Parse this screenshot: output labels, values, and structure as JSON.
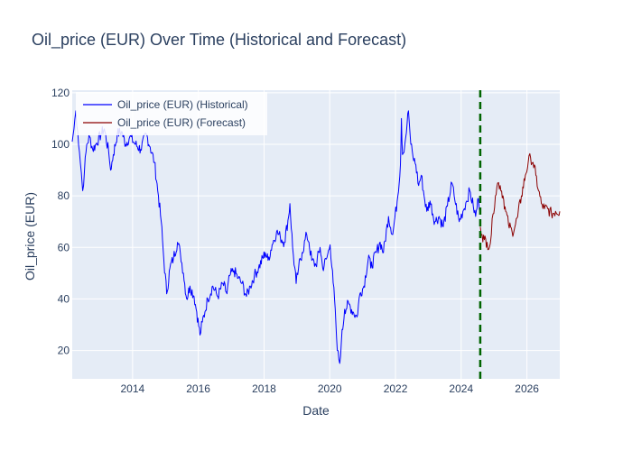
{
  "chart_data": {
    "type": "line",
    "title": "Oil_price (EUR) Over Time (Historical and Forecast)",
    "xlabel": "Date",
    "ylabel": "Oil_price (EUR)",
    "x_range": [
      "2012-03-01",
      "2027-01-01"
    ],
    "ylim": [
      9,
      121
    ],
    "x_ticks": [
      "2014",
      "2016",
      "2018",
      "2020",
      "2022",
      "2024",
      "2026"
    ],
    "y_ticks": [
      20,
      40,
      60,
      80,
      100,
      120
    ],
    "grid": true,
    "legend_position": "top-left",
    "forecast_start": "2024-07-31",
    "forecast_line_color": "#006400",
    "plot_background": "#e5ecf6",
    "series": [
      {
        "name": "Oil_price (EUR) (Historical)",
        "color": "#0000ff",
        "points": [
          [
            "2012-03-01",
            101
          ],
          [
            "2012-03-20",
            106
          ],
          [
            "2012-04-10",
            113
          ],
          [
            "2012-05-01",
            105
          ],
          [
            "2012-05-20",
            97
          ],
          [
            "2012-06-10",
            89
          ],
          [
            "2012-06-25",
            82
          ],
          [
            "2012-07-15",
            90
          ],
          [
            "2012-08-10",
            100
          ],
          [
            "2012-09-10",
            103
          ],
          [
            "2012-10-15",
            98
          ],
          [
            "2012-11-20",
            100
          ],
          [
            "2013-01-15",
            104
          ],
          [
            "2013-02-20",
            106
          ],
          [
            "2013-04-10",
            97
          ],
          [
            "2013-05-01",
            90
          ],
          [
            "2013-06-01",
            96
          ],
          [
            "2013-07-15",
            104
          ],
          [
            "2013-09-01",
            105
          ],
          [
            "2013-10-15",
            100
          ],
          [
            "2013-12-01",
            103
          ],
          [
            "2014-02-01",
            100
          ],
          [
            "2014-04-01",
            98
          ],
          [
            "2014-06-01",
            104
          ],
          [
            "2014-07-15",
            99
          ],
          [
            "2014-09-01",
            93
          ],
          [
            "2014-10-15",
            80
          ],
          [
            "2014-11-15",
            70
          ],
          [
            "2014-12-15",
            55
          ],
          [
            "2015-01-15",
            42
          ],
          [
            "2015-02-20",
            52
          ],
          [
            "2015-04-01",
            56
          ],
          [
            "2015-05-15",
            62
          ],
          [
            "2015-06-15",
            58
          ],
          [
            "2015-07-20",
            50
          ],
          [
            "2015-08-25",
            40
          ],
          [
            "2015-10-01",
            45
          ],
          [
            "2015-11-15",
            41
          ],
          [
            "2015-12-15",
            35
          ],
          [
            "2016-01-20",
            26
          ],
          [
            "2016-02-15",
            31
          ],
          [
            "2016-03-15",
            35
          ],
          [
            "2016-04-15",
            40
          ],
          [
            "2016-06-10",
            45
          ],
          [
            "2016-08-05",
            41
          ],
          [
            "2016-10-01",
            46
          ],
          [
            "2016-11-15",
            42
          ],
          [
            "2016-12-15",
            49
          ],
          [
            "2017-02-01",
            51
          ],
          [
            "2017-03-20",
            48
          ],
          [
            "2017-05-01",
            46
          ],
          [
            "2017-06-20",
            41
          ],
          [
            "2017-08-01",
            45
          ],
          [
            "2017-09-15",
            49
          ],
          [
            "2017-11-01",
            52
          ],
          [
            "2018-01-15",
            58
          ],
          [
            "2018-02-15",
            55
          ],
          [
            "2018-04-01",
            61
          ],
          [
            "2018-05-20",
            66
          ],
          [
            "2018-07-01",
            64
          ],
          [
            "2018-08-15",
            62
          ],
          [
            "2018-10-01",
            72
          ],
          [
            "2018-10-15",
            77
          ],
          [
            "2018-11-15",
            60
          ],
          [
            "2018-12-24",
            46
          ],
          [
            "2019-01-20",
            52
          ],
          [
            "2019-03-01",
            58
          ],
          [
            "2019-04-20",
            65
          ],
          [
            "2019-05-15",
            62
          ],
          [
            "2019-06-15",
            55
          ],
          [
            "2019-08-01",
            53
          ],
          [
            "2019-09-16",
            60
          ],
          [
            "2019-10-15",
            52
          ],
          [
            "2019-12-01",
            56
          ],
          [
            "2020-01-05",
            61
          ],
          [
            "2020-02-01",
            51
          ],
          [
            "2020-03-10",
            30
          ],
          [
            "2020-03-25",
            20
          ],
          [
            "2020-04-21",
            15
          ],
          [
            "2020-05-10",
            24
          ],
          [
            "2020-06-15",
            36
          ],
          [
            "2020-08-01",
            38
          ],
          [
            "2020-09-15",
            35
          ],
          [
            "2020-10-30",
            33
          ],
          [
            "2020-12-01",
            42
          ],
          [
            "2021-01-15",
            45
          ],
          [
            "2021-03-10",
            57
          ],
          [
            "2021-04-01",
            52
          ],
          [
            "2021-06-01",
            58
          ],
          [
            "2021-07-15",
            62
          ],
          [
            "2021-08-20",
            58
          ],
          [
            "2021-10-15",
            72
          ],
          [
            "2021-12-01",
            65
          ],
          [
            "2022-01-20",
            78
          ],
          [
            "2022-02-25",
            92
          ],
          [
            "2022-03-08",
            110
          ],
          [
            "2022-03-20",
            96
          ],
          [
            "2022-04-15",
            100
          ],
          [
            "2022-05-10",
            108
          ],
          [
            "2022-05-25",
            113
          ],
          [
            "2022-06-20",
            100
          ],
          [
            "2022-07-15",
            95
          ],
          [
            "2022-08-15",
            92
          ],
          [
            "2022-09-15",
            84
          ],
          [
            "2022-10-15",
            88
          ],
          [
            "2022-11-15",
            80
          ],
          [
            "2022-12-15",
            74
          ],
          [
            "2023-01-20",
            78
          ],
          [
            "2023-03-15",
            70
          ],
          [
            "2023-05-01",
            72
          ],
          [
            "2023-06-15",
            68
          ],
          [
            "2023-08-01",
            76
          ],
          [
            "2023-09-20",
            85
          ],
          [
            "2023-10-15",
            80
          ],
          [
            "2023-12-10",
            70
          ],
          [
            "2024-01-20",
            74
          ],
          [
            "2024-03-01",
            78
          ],
          [
            "2024-04-05",
            82
          ],
          [
            "2024-05-15",
            76
          ],
          [
            "2024-06-10",
            72
          ],
          [
            "2024-07-10",
            79
          ],
          [
            "2024-07-31",
            74
          ]
        ]
      },
      {
        "name": "Oil_price (EUR) (Forecast)",
        "color": "#8b0000",
        "points": [
          [
            "2024-08-01",
            68
          ],
          [
            "2024-08-20",
            65
          ],
          [
            "2024-09-15",
            63
          ],
          [
            "2024-10-15",
            62
          ],
          [
            "2024-11-10",
            60
          ],
          [
            "2024-12-01",
            65
          ],
          [
            "2024-12-20",
            73
          ],
          [
            "2025-01-15",
            80
          ],
          [
            "2025-02-10",
            85
          ],
          [
            "2025-03-10",
            84
          ],
          [
            "2025-04-10",
            80
          ],
          [
            "2025-05-10",
            74
          ],
          [
            "2025-06-10",
            69
          ],
          [
            "2025-07-20",
            66
          ],
          [
            "2025-08-20",
            68
          ],
          [
            "2025-09-20",
            72
          ],
          [
            "2025-11-01",
            80
          ],
          [
            "2025-12-15",
            88
          ],
          [
            "2026-01-15",
            93
          ],
          [
            "2026-02-10",
            95
          ],
          [
            "2026-03-10",
            93
          ],
          [
            "2026-04-10",
            88
          ],
          [
            "2026-05-10",
            82
          ],
          [
            "2026-06-10",
            77
          ],
          [
            "2026-07-15",
            75
          ],
          [
            "2026-08-20",
            75
          ],
          [
            "2026-10-01",
            73
          ],
          [
            "2026-11-15",
            74
          ],
          [
            "2027-01-01",
            74
          ]
        ]
      }
    ]
  }
}
